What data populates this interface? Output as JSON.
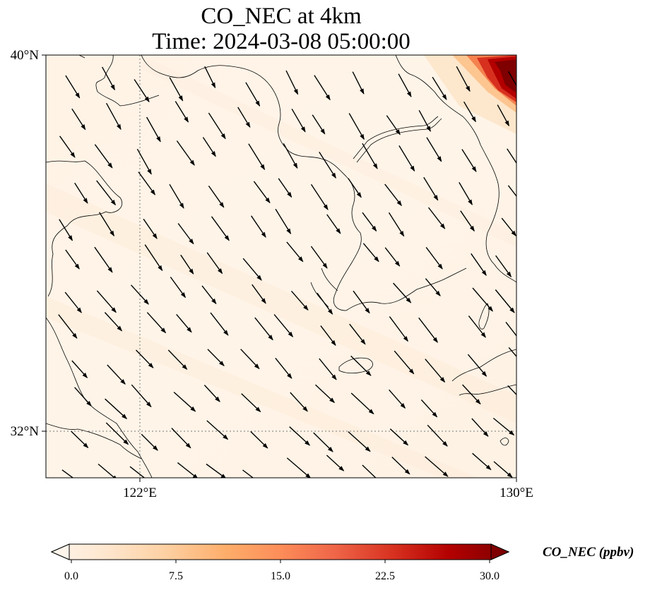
{
  "title": {
    "line1": "CO_NEC at 4km",
    "line2": "Time: 2024-03-08 05:00:00"
  },
  "map": {
    "lon_range": [
      120,
      130
    ],
    "lat_range": [
      31,
      40
    ],
    "x_ticks": [
      "122°E",
      "130°E"
    ],
    "y_ticks": [
      "40°N",
      "32°N"
    ],
    "gridlines": [
      {
        "type": "lon",
        "value": 122
      },
      {
        "type": "lat",
        "value": 32
      }
    ],
    "field_colors": {
      "background": "#fff5eb",
      "hotspot": "#7f0000"
    }
  },
  "colorbar": {
    "label": "CO_NEC (ppbv)",
    "ticks": [
      "0.0",
      "7.5",
      "15.0",
      "22.5",
      "30.0"
    ],
    "colors": [
      "#fff5eb",
      "#fee6ce",
      "#fdd0a2",
      "#fdae6b",
      "#fc8d59",
      "#ef6548",
      "#d7301f",
      "#b30000",
      "#7f0000"
    ]
  }
}
